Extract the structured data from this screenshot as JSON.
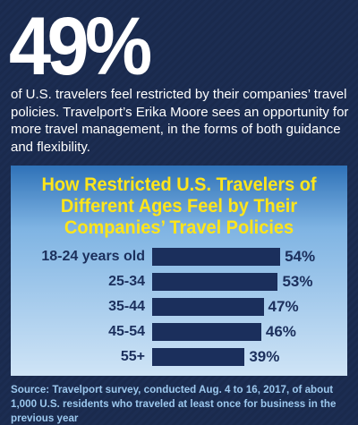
{
  "headline": "49%",
  "intro": "of U.S. travelers feel restricted by their companies’ travel policies. Travelport’s Erika Moore sees an opportunity for more travel management, in the forms of both guidance and flexibility.",
  "chart_data": {
    "type": "bar",
    "orientation": "horizontal",
    "title": "How Restricted U.S. Travelers of Different Ages Feel by Their Companies’ Travel Policies",
    "categories": [
      "18-24 years old",
      "25-34",
      "35-44",
      "45-54",
      "55+"
    ],
    "values": [
      54,
      53,
      47,
      46,
      39
    ],
    "value_labels": [
      "54%",
      "53%",
      "47%",
      "46%",
      "39%"
    ],
    "color": "#1b2f5c"
  },
  "source": "Source: Travelport survey, conducted Aug. 4 to 16, 2017, of about 1,000 U.S. residents who traveled at least once for business in the previous year"
}
